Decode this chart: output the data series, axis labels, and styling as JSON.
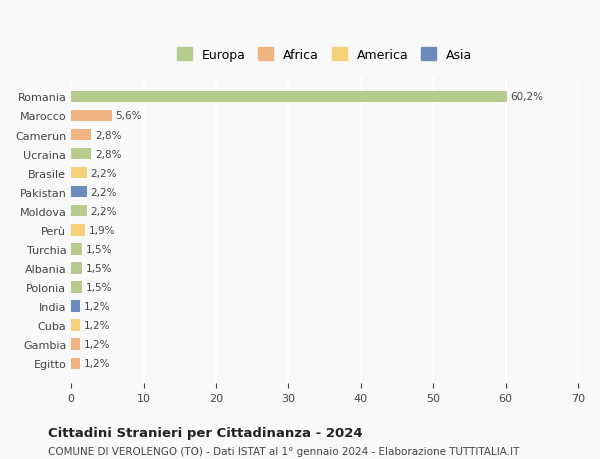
{
  "categories": [
    "Romania",
    "Marocco",
    "Camerun",
    "Ucraina",
    "Brasile",
    "Pakistan",
    "Moldova",
    "Perù",
    "Turchia",
    "Albania",
    "Polonia",
    "India",
    "Cuba",
    "Gambia",
    "Egitto"
  ],
  "values": [
    60.2,
    5.6,
    2.8,
    2.8,
    2.2,
    2.2,
    2.2,
    1.9,
    1.5,
    1.5,
    1.5,
    1.2,
    1.2,
    1.2,
    1.2
  ],
  "labels": [
    "60,2%",
    "5,6%",
    "2,8%",
    "2,8%",
    "2,2%",
    "2,2%",
    "2,2%",
    "1,9%",
    "1,5%",
    "1,5%",
    "1,5%",
    "1,2%",
    "1,2%",
    "1,2%",
    "1,2%"
  ],
  "colors": [
    "#b5cc8e",
    "#f0b482",
    "#f0b482",
    "#b5cc8e",
    "#f5d27a",
    "#6b8cba",
    "#b5cc8e",
    "#f5d27a",
    "#b5cc8e",
    "#b5cc8e",
    "#b5cc8e",
    "#6b8cba",
    "#f5d27a",
    "#f0b482",
    "#f0b482"
  ],
  "continent": [
    "Europa",
    "Africa",
    "Africa",
    "Europa",
    "America",
    "Asia",
    "Europa",
    "America",
    "Europa",
    "Europa",
    "Europa",
    "Asia",
    "America",
    "Africa",
    "Africa"
  ],
  "legend_labels": [
    "Europa",
    "Africa",
    "America",
    "Asia"
  ],
  "legend_colors": [
    "#b5cc8e",
    "#f0b482",
    "#f5d27a",
    "#6b8cba"
  ],
  "xlim": [
    0,
    70
  ],
  "xticks": [
    0,
    10,
    20,
    30,
    40,
    50,
    60,
    70
  ],
  "title": "Cittadini Stranieri per Cittadinanza - 2024",
  "subtitle": "COMUNE DI VEROLENGO (TO) - Dati ISTAT al 1° gennaio 2024 - Elaborazione TUTTITALIA.IT",
  "bg_color": "#f9f9f9",
  "grid_color": "#ffffff",
  "bar_height": 0.6
}
